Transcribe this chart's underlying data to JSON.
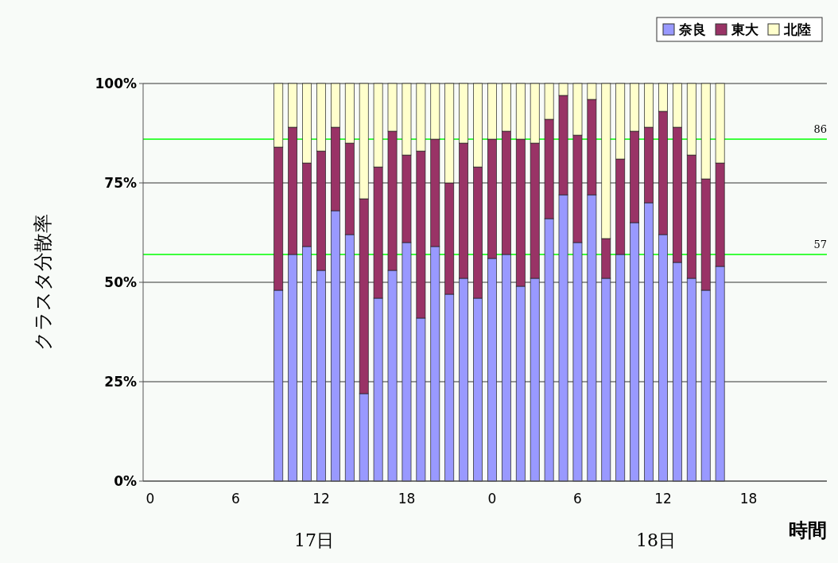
{
  "chart_data": {
    "type": "bar",
    "stacked": true,
    "xlabel": "時間",
    "ylabel": "クラスタ分散率",
    "categories": [
      "0",
      null,
      null,
      null,
      null,
      null,
      "6",
      null,
      null,
      null,
      null,
      null,
      "12",
      null,
      null,
      null,
      null,
      null,
      "18",
      null,
      null,
      null,
      null,
      null,
      "0",
      null,
      null,
      null,
      null,
      null,
      "6",
      null,
      null,
      null,
      null,
      null,
      "12",
      null,
      null,
      null,
      null,
      null,
      "18",
      null,
      null,
      null,
      null,
      null
    ],
    "series": [
      {
        "name": "奈良",
        "color": "#9999ff",
        "values": [
          null,
          null,
          null,
          null,
          null,
          null,
          null,
          null,
          null,
          48,
          57,
          59,
          53,
          68,
          62,
          22,
          46,
          53,
          60,
          41,
          59,
          47,
          51,
          46,
          56,
          57,
          49,
          51,
          66,
          72,
          60,
          72,
          51,
          57,
          65,
          70,
          62,
          55,
          51,
          48,
          54,
          null,
          null,
          null,
          null,
          null,
          null,
          null
        ]
      },
      {
        "name": "東大",
        "color": "#993366",
        "values": [
          null,
          null,
          null,
          null,
          null,
          null,
          null,
          null,
          null,
          36,
          32,
          21,
          30,
          21,
          23,
          49,
          33,
          35,
          22,
          42,
          27,
          28,
          34,
          33,
          30,
          31,
          37,
          34,
          25,
          25,
          27,
          24,
          10,
          24,
          23,
          19,
          31,
          34,
          31,
          28,
          26,
          null,
          null,
          null,
          null,
          null,
          null,
          null
        ]
      },
      {
        "name": "北陸",
        "color": "#ffffcc",
        "values": [
          null,
          null,
          null,
          null,
          null,
          null,
          null,
          null,
          null,
          16,
          11,
          20,
          17,
          11,
          15,
          29,
          21,
          12,
          18,
          17,
          14,
          25,
          15,
          21,
          14,
          12,
          14,
          15,
          9,
          3,
          13,
          4,
          39,
          19,
          12,
          11,
          7,
          11,
          18,
          24,
          20,
          null,
          null,
          null,
          null,
          null,
          null,
          null
        ]
      }
    ],
    "ylim": [
      0,
      100
    ],
    "yticks": [
      {
        "value": 0,
        "label": "0%"
      },
      {
        "value": 25,
        "label": "25%"
      },
      {
        "value": 50,
        "label": "50%"
      },
      {
        "value": 75,
        "label": "75%"
      },
      {
        "value": 100,
        "label": "100%"
      }
    ],
    "grid": "y",
    "legend": "top right",
    "ref_lines": [
      {
        "axis": "y",
        "value": 86,
        "label": "86",
        "color": "#00ff00"
      },
      {
        "axis": "y",
        "value": 57,
        "label": "57",
        "color": "#00ff00"
      }
    ],
    "annotations": [
      "17日",
      "18日"
    ]
  }
}
